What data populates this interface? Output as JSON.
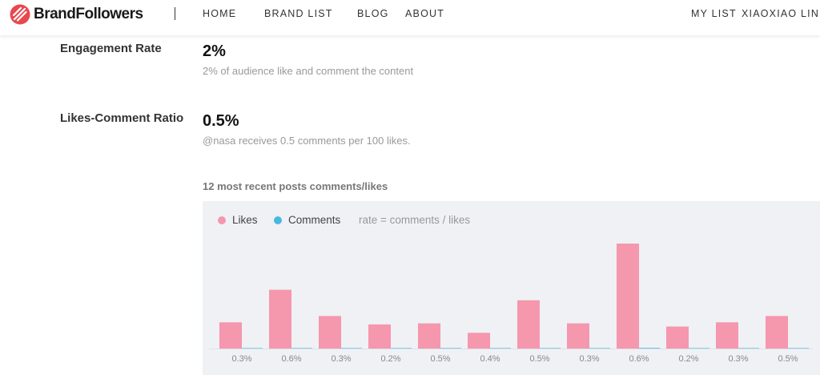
{
  "header": {
    "brand": "BrandFollowers",
    "nav_left": [
      "HOME",
      "BRAND LIST",
      "BLOG",
      "ABOUT"
    ],
    "nav_right": [
      "MY LIST",
      "XIAOXIAO LIN"
    ]
  },
  "metrics": {
    "engagement": {
      "label": "Engagement Rate",
      "value": "2%",
      "description": "2% of audience like and comment the content"
    },
    "likes_comment": {
      "label": "Likes-Comment Ratio",
      "value": "0.5%",
      "description": "@nasa receives 0.5 comments per 100 likes."
    }
  },
  "chart_section": {
    "title": "12 most recent posts comments/likes",
    "rate_note": "rate = comments / likes"
  },
  "colors": {
    "likes": "#f597ad",
    "comments": "#4ab8de",
    "accent": "#e8494f"
  },
  "chart_data": {
    "type": "bar",
    "series": [
      {
        "name": "Likes",
        "values": [
          25,
          56,
          31,
          23,
          24,
          15,
          46,
          24,
          100,
          21,
          25,
          31
        ]
      },
      {
        "name": "Comments",
        "values": [
          0.08,
          0.34,
          0.09,
          0.05,
          0.12,
          0.06,
          0.23,
          0.07,
          0.6,
          0.04,
          0.08,
          0.16
        ]
      }
    ],
    "categories": [
      "0.3%",
      "0.6%",
      "0.3%",
      "0.2%",
      "0.5%",
      "0.4%",
      "0.5%",
      "0.3%",
      "0.6%",
      "0.2%",
      "0.3%",
      "0.5%"
    ],
    "ylim": [
      0,
      100
    ],
    "grid": false,
    "legend": "top-left"
  }
}
